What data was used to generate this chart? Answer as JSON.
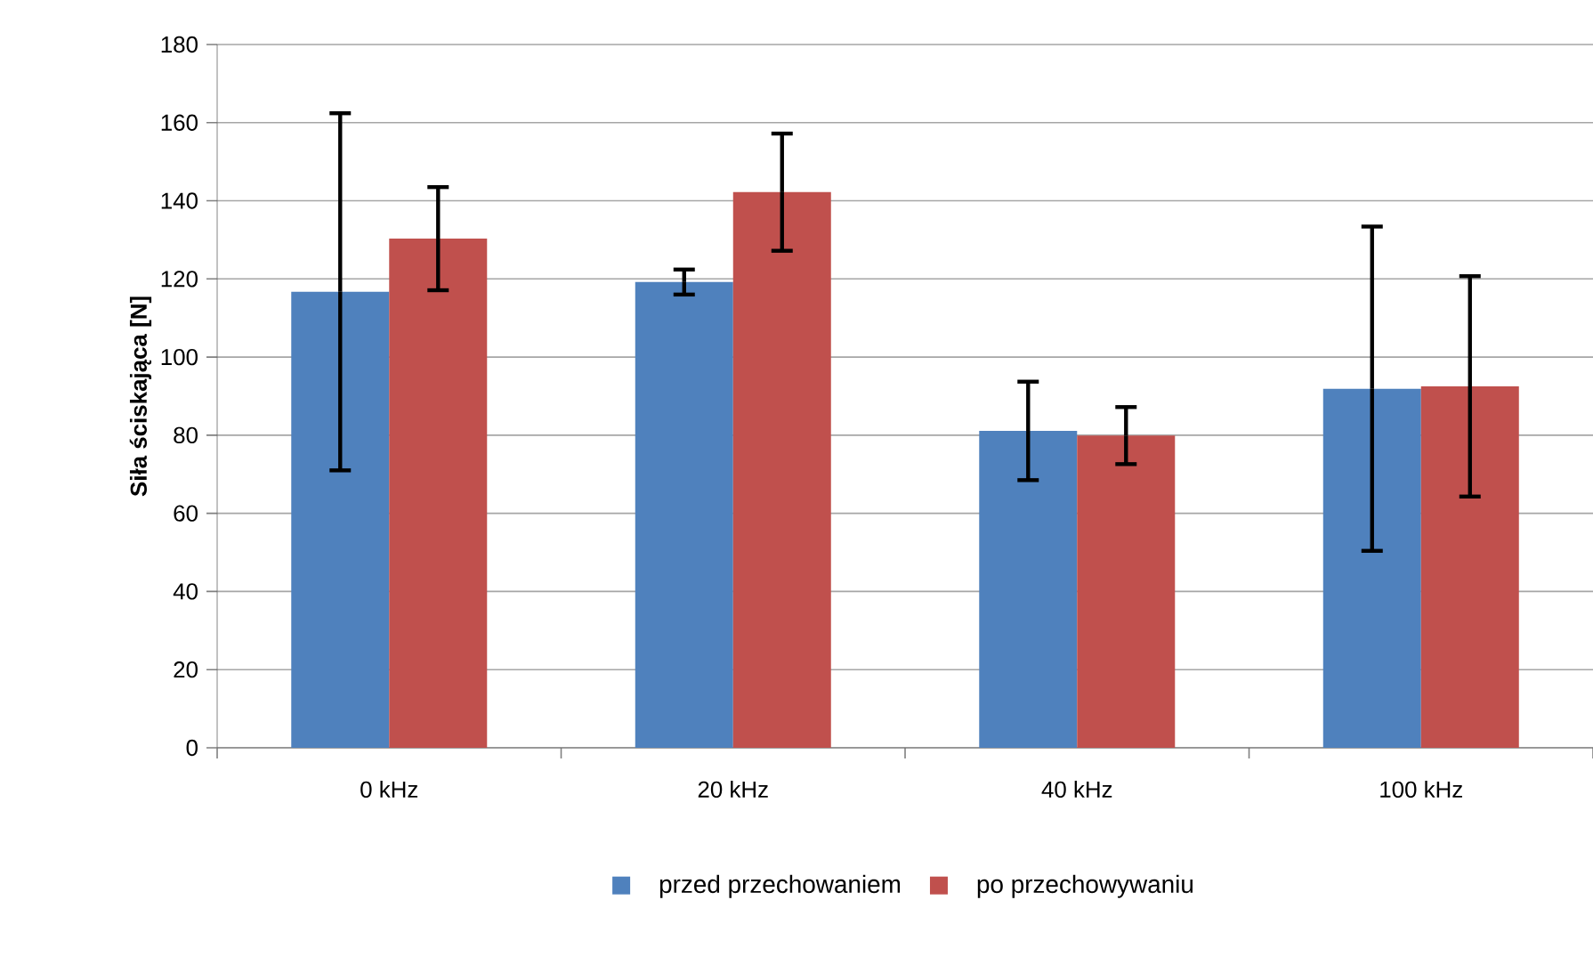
{
  "chart_data": {
    "type": "bar",
    "ylabel": "Siła ściskająca [N]",
    "categories": [
      "0 kHz",
      "20 kHz",
      "40 kHz",
      "100 kHz"
    ],
    "series": [
      {
        "name": "przed przechowaniem",
        "color": "#4f81bd",
        "values": [
          116.7,
          119.2,
          81.1,
          91.9
        ],
        "errors": [
          45.7,
          3.2,
          12.6,
          41.5
        ]
      },
      {
        "name": "po przechowywaniu",
        "color": "#c0504d",
        "values": [
          130.3,
          142.2,
          79.9,
          92.5
        ],
        "errors": [
          13.2,
          15.0,
          7.3,
          28.2
        ]
      }
    ],
    "ylim": [
      0,
      180
    ],
    "yticks": [
      0,
      20,
      40,
      60,
      80,
      100,
      120,
      140,
      160,
      180
    ],
    "grid": "y",
    "legend": "bottom"
  }
}
